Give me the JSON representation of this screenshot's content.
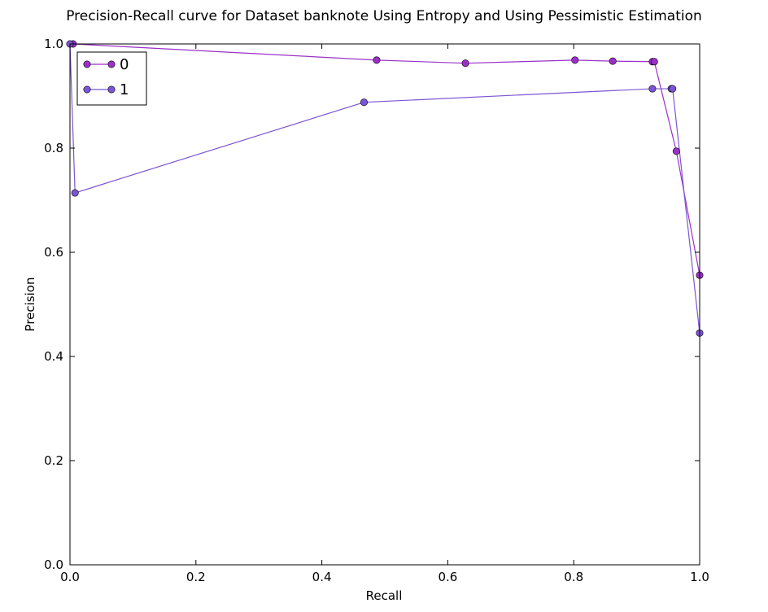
{
  "chart_data": {
    "type": "line",
    "title": "Precision-Recall curve for Dataset banknote Using Entropy and Using Pessimistic Estimation",
    "xlabel": "Recall",
    "ylabel": "Precision",
    "xlim": [
      0.0,
      1.0
    ],
    "ylim": [
      0.0,
      1.0
    ],
    "xticks": [
      "0.0",
      "0.2",
      "0.4",
      "0.6",
      "0.8",
      "1.0"
    ],
    "yticks": [
      "0.0",
      "0.2",
      "0.4",
      "0.6",
      "0.8",
      "1.0"
    ],
    "grid": false,
    "legend_position": "upper-left",
    "series": [
      {
        "name": "0",
        "color": "#9b30c8",
        "points": [
          [
            0.005,
            1.0
          ],
          [
            0.487,
            0.969
          ],
          [
            0.628,
            0.963
          ],
          [
            0.802,
            0.969
          ],
          [
            0.862,
            0.967
          ],
          [
            0.925,
            0.966
          ],
          [
            0.928,
            0.966
          ],
          [
            0.963,
            0.794
          ],
          [
            1.0,
            0.556
          ]
        ]
      },
      {
        "name": "1",
        "color": "#7b55d4",
        "points": [
          [
            0.0,
            1.0
          ],
          [
            0.008,
            0.714
          ],
          [
            0.467,
            0.888
          ],
          [
            0.925,
            0.914
          ],
          [
            0.955,
            0.914
          ],
          [
            0.957,
            0.914
          ],
          [
            1.0,
            0.445
          ]
        ]
      }
    ]
  }
}
